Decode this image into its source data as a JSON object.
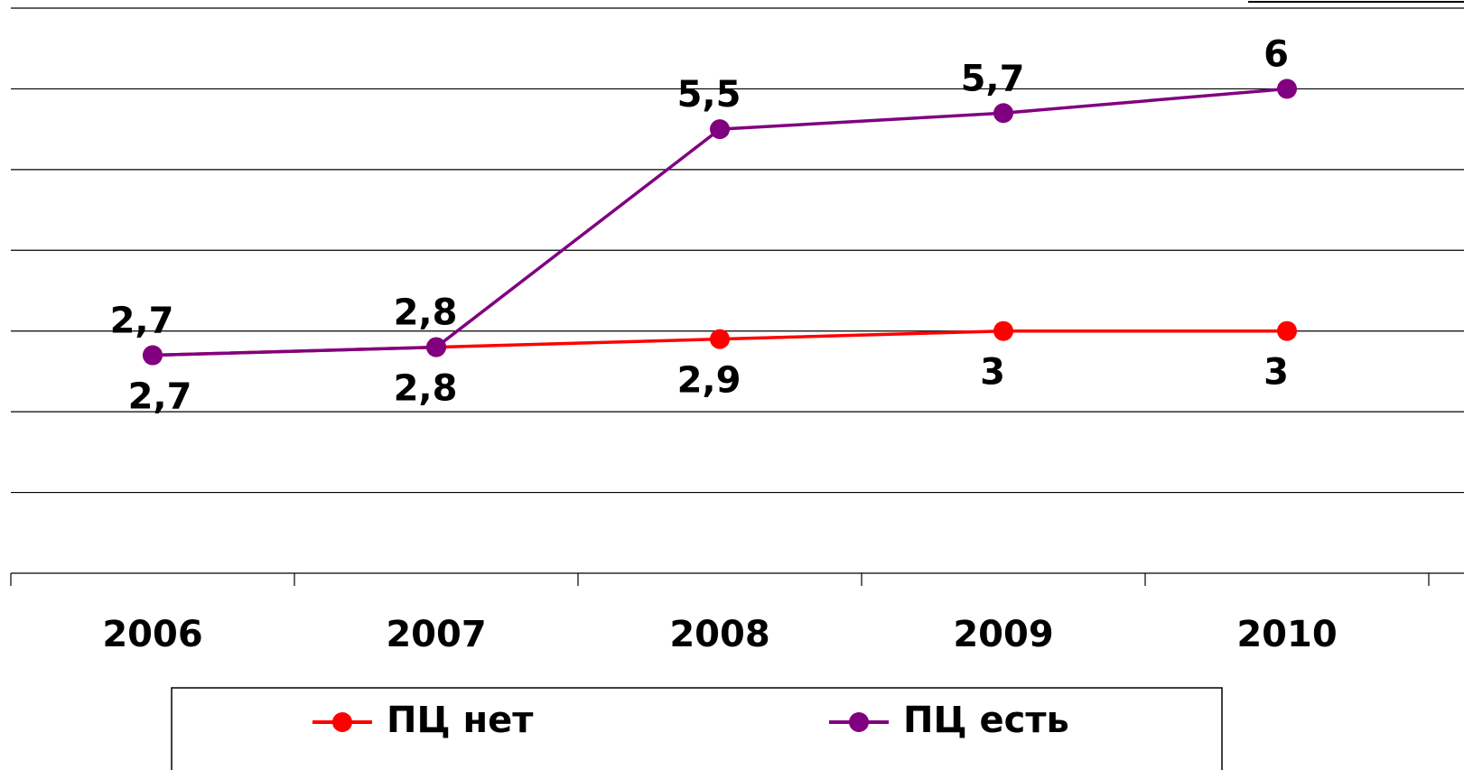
{
  "chart_data": {
    "type": "line",
    "categories": [
      "2006",
      "2007",
      "2008",
      "2009",
      "2010"
    ],
    "series": [
      {
        "name": "ПЦ нет",
        "color": "#ff0000",
        "values": [
          2.7,
          2.8,
          2.9,
          3,
          3
        ],
        "value_labels": [
          "2,7",
          "2,8",
          "2,9",
          "3",
          "3"
        ]
      },
      {
        "name": "ПЦ есть",
        "color": "#800080",
        "values": [
          2.7,
          2.8,
          5.5,
          5.7,
          6
        ],
        "value_labels": [
          "2,7",
          "2,8",
          "5,5",
          "5,7",
          "6"
        ]
      }
    ],
    "ylim": [
      0,
      7
    ],
    "yticks": [
      0,
      1,
      2,
      3,
      4,
      5,
      6,
      7
    ],
    "grid": true
  }
}
